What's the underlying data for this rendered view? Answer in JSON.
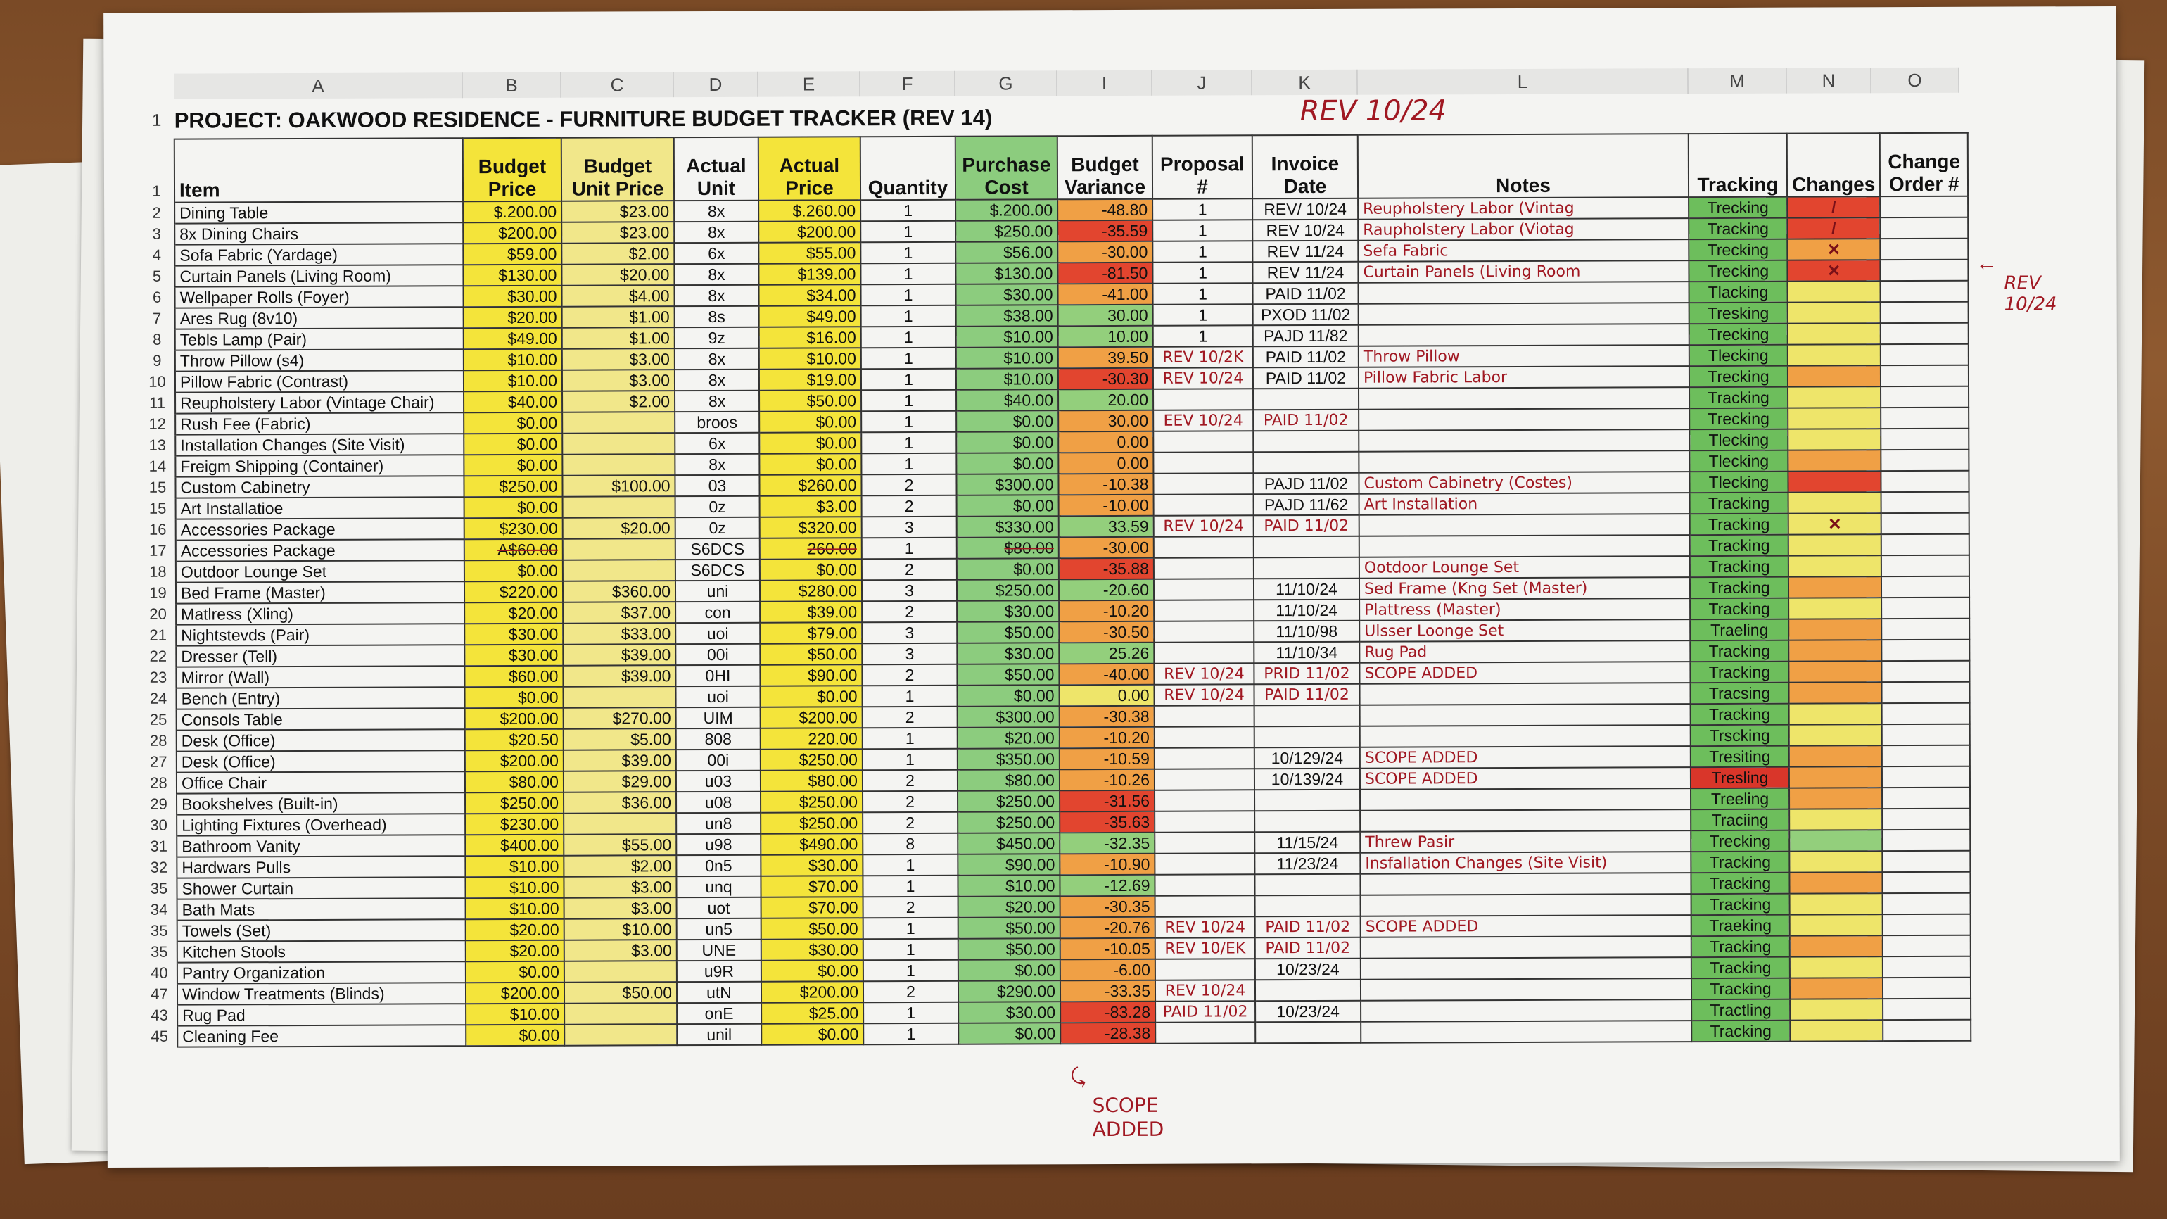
{
  "columns": [
    "A",
    "B",
    "C",
    "D",
    "E",
    "F",
    "G",
    "I",
    "J",
    "K",
    "L",
    "M",
    "N",
    "O"
  ],
  "title_row_num": "1",
  "title": "PROJECT: OAKWOOD RESIDENCE - FURNITURE BUDGET TRACKER (REV 14)",
  "annotation_top": "REV 10/24",
  "annotation_side": "REV 10/24",
  "annotation_bottom": "SCOPE ADDED",
  "header_row_num": "1",
  "headers": [
    "Item",
    "Budget Price",
    "Budget Unit Price",
    "Actual Unit",
    "Actual Price",
    "Quantity",
    "Purchase Cost",
    "Budget Variance",
    "Proposal #",
    "Invoice Date",
    "Notes",
    "Tracking",
    "Changes",
    "Change Order #"
  ],
  "colors": {
    "variance_red": "#e2452f",
    "variance_orange": "#f0a045",
    "variance_green": "#93cf7c",
    "variance_yellow": "#eee56a",
    "budget_yellow": "#f4e43a",
    "cost_green": "#8ccc7e",
    "ink_red": "#a01822"
  },
  "rows": [
    {
      "n": "2",
      "a": "Dining Table",
      "b": "$.200.00",
      "c": "$23.00",
      "d": "8x",
      "e": "$.260.00",
      "f": "1",
      "g": "$.200.00",
      "i": "-48.80",
      "v": "o",
      "j": "1",
      "k": "REV/ 10/24",
      "l": "Reupholstery Labor (Vintag",
      "m": "Trecking",
      "mc": "g",
      "nc": "r",
      "x": "/"
    },
    {
      "n": "3",
      "a": "8x Dining Chairs",
      "b": "$200.00",
      "c": "$23.00",
      "d": "8x",
      "e": "$200.00",
      "f": "1",
      "g": "$250.00",
      "i": "-35.59",
      "v": "r",
      "j": "1",
      "k": "REV 10/24",
      "l": "Raupholstery Labor (Viotag",
      "m": "Tracking",
      "mc": "g",
      "nc": "r",
      "x": "/"
    },
    {
      "n": "4",
      "a": "Sofa Fabric (Yardage)",
      "b": "$59.00",
      "c": "$2.00",
      "d": "6x",
      "e": "$55.00",
      "f": "1",
      "g": "$56.00",
      "i": "-30.00",
      "v": "o",
      "j": "1",
      "k": "REV 11/24",
      "l": "Sefa Fabric",
      "m": "Trecking",
      "mc": "g",
      "nc": "o",
      "x": "✕"
    },
    {
      "n": "5",
      "a": "Curtain Panels (Living Room)",
      "b": "$130.00",
      "c": "$20.00",
      "d": "8x",
      "e": "$139.00",
      "f": "1",
      "g": "$130.00",
      "i": "-81.50",
      "v": "r",
      "j": "1",
      "k": "REV 11/24",
      "l": "Curtain Panels (Living Room",
      "m": "Trecking",
      "mc": "g",
      "nc": "r",
      "x": "✕"
    },
    {
      "n": "6",
      "a": "Wellpaper Rolls (Foyer)",
      "b": "$30.00",
      "c": "$4.00",
      "d": "8x",
      "e": "$34.00",
      "f": "1",
      "g": "$30.00",
      "i": "-41.00",
      "v": "o",
      "j": "1",
      "k": "PAID 11/02",
      "l": "",
      "m": "Tlacking",
      "mc": "g",
      "nc": "y"
    },
    {
      "n": "7",
      "a": "Ares Rug (8v10)",
      "b": "$20.00",
      "c": "$1.00",
      "d": "8s",
      "e": "$49.00",
      "f": "1",
      "g": "$38.00",
      "i": "30.00",
      "v": "g",
      "j": "1",
      "k": "PXOD 11/02",
      "l": "",
      "m": "Tresking",
      "mc": "g",
      "nc": "y"
    },
    {
      "n": "8",
      "a": "Tebls Lamp (Pair)",
      "b": "$49.00",
      "c": "$1.00",
      "d": "9z",
      "e": "$16.00",
      "f": "1",
      "g": "$10.00",
      "i": "10.00",
      "v": "g",
      "j": "1",
      "k": "PAJD 11/82",
      "l": "",
      "m": "Trecking",
      "mc": "g",
      "nc": "y"
    },
    {
      "n": "9",
      "a": "Throw Pillow (s4)",
      "b": "$10.00",
      "c": "$3.00",
      "d": "8x",
      "e": "$10.00",
      "f": "1",
      "g": "$10.00",
      "i": "39.50",
      "v": "o",
      "j": "REV 10/2K",
      "jh": true,
      "k": "PAID 11/02",
      "l": "Throw Pillow",
      "m": "Tlecking",
      "mc": "g",
      "nc": "y"
    },
    {
      "n": "10",
      "a": "Pillow Fabric (Contrast)",
      "b": "$10.00",
      "c": "$3.00",
      "d": "8x",
      "e": "$19.00",
      "f": "1",
      "g": "$10.00",
      "i": "-30.30",
      "v": "r",
      "j": "REV 10/24",
      "jh": true,
      "k": "PAID 11/02",
      "l": "Pillow Fabric Labor",
      "m": "Trecking",
      "mc": "g",
      "nc": "o"
    },
    {
      "n": "11",
      "a": "Reupholstery Labor (Vintage Chair)",
      "b": "$40.00",
      "c": "$2.00",
      "d": "8x",
      "e": "$50.00",
      "f": "1",
      "g": "$40.00",
      "i": "20.00",
      "v": "g",
      "j": "",
      "k": "",
      "l": "",
      "m": "Tracking",
      "mc": "g",
      "nc": "y"
    },
    {
      "n": "12",
      "a": "Rush Fee (Fabric)",
      "b": "$0.00",
      "c": "",
      "d": "broos",
      "e": "$0.00",
      "f": "1",
      "g": "$0.00",
      "i": "30.00",
      "v": "o",
      "j": "EEV 10/24",
      "jh": true,
      "k": "PAID 11/02",
      "kh": true,
      "l": "",
      "m": "Trecking",
      "mc": "g",
      "nc": "y"
    },
    {
      "n": "13",
      "a": "Installation Changes (Site Visit)",
      "b": "$0.00",
      "c": "",
      "d": "6x",
      "e": "$0.00",
      "f": "1",
      "g": "$0.00",
      "i": "0.00",
      "v": "o",
      "j": "",
      "k": "",
      "l": "",
      "m": "Tlecking",
      "mc": "g",
      "nc": "y"
    },
    {
      "n": "14",
      "a": "Freigm Shipping (Container)",
      "b": "$0.00",
      "c": "",
      "d": "8x",
      "e": "$0.00",
      "f": "1",
      "g": "$0.00",
      "i": "0.00",
      "v": "o",
      "j": "",
      "k": "",
      "l": "",
      "m": "Tlecking",
      "mc": "g",
      "nc": "o"
    },
    {
      "n": "15",
      "a": "Custom Cabinetry",
      "b": "$250.00",
      "c": "$100.00",
      "d": "03",
      "e": "$260.00",
      "f": "2",
      "g": "$300.00",
      "i": "-10.38",
      "v": "o",
      "j": "",
      "k": "PAJD 11/02",
      "l": "Custom Cabinetry (Costes)",
      "m": "Tlecking",
      "mc": "g",
      "nc": "r"
    },
    {
      "n": "15",
      "a": "Art Installatioe",
      "b": "$0.00",
      "c": "",
      "d": "0z",
      "e": "$3.00",
      "f": "2",
      "g": "$0.00",
      "i": "-10.00",
      "v": "o",
      "j": "",
      "k": "PAJD 11/62",
      "l": "Art Installation",
      "m": "Tracking",
      "mc": "g",
      "nc": "y"
    },
    {
      "n": "16",
      "a": "Accessories Package",
      "b": "$230.00",
      "c": "$20.00",
      "d": "0z",
      "e": "$320.00",
      "f": "3",
      "g": "$330.00",
      "i": "33.59",
      "v": "g",
      "j": "REV 10/24",
      "jh": true,
      "k": "PAID 11/02",
      "kh": true,
      "l": "",
      "m": "Tracking",
      "mc": "g",
      "nc": "y",
      "x": "✕"
    },
    {
      "n": "17",
      "a": "Accessories Package",
      "b": "A$60.00",
      "c": "",
      "d": "S6DCS",
      "e": "260.00",
      "f": "1",
      "g": "$80.00",
      "i": "-30.00",
      "v": "o",
      "j": "",
      "k": "",
      "l": "",
      "m": "Tracking",
      "mc": "g",
      "nc": "y",
      "s": true
    },
    {
      "n": "18",
      "a": "Outdoor Lounge Set",
      "b": "$0.00",
      "c": "",
      "d": "S6DCS",
      "e": "$0.00",
      "f": "2",
      "g": "$0.00",
      "i": "-35.88",
      "v": "r",
      "j": "",
      "k": "",
      "l": "Ootdoor Lounge Set",
      "m": "Tracking",
      "mc": "g",
      "nc": "y"
    },
    {
      "n": "19",
      "a": "Bed Frame (Master)",
      "b": "$220.00",
      "c": "$360.00",
      "d": "uni",
      "e": "$280.00",
      "f": "3",
      "g": "$250.00",
      "i": "-20.60",
      "v": "g",
      "j": "",
      "k": "11/10/24",
      "l": "Sed Frame (Kng Set (Master)",
      "m": "Tracking",
      "mc": "g",
      "nc": "o"
    },
    {
      "n": "20",
      "a": "Matlress (Xling)",
      "b": "$20.00",
      "c": "$37.00",
      "d": "con",
      "e": "$39.00",
      "f": "2",
      "g": "$30.00",
      "i": "-10.20",
      "v": "o",
      "j": "",
      "k": "11/10/24",
      "l": "Plattress (Master)",
      "m": "Tracking",
      "mc": "g",
      "nc": "y"
    },
    {
      "n": "21",
      "a": "Nightstevds (Pair)",
      "b": "$30.00",
      "c": "$33.00",
      "d": "uoi",
      "e": "$79.00",
      "f": "3",
      "g": "$50.00",
      "i": "-30.50",
      "v": "o",
      "j": "",
      "k": "11/10/98",
      "l": "Ulsser Loonge Set",
      "m": "Traeling",
      "mc": "g",
      "nc": "o"
    },
    {
      "n": "22",
      "a": "Dresser (Tell)",
      "b": "$30.00",
      "c": "$39.00",
      "d": "00i",
      "e": "$50.00",
      "f": "3",
      "g": "$30.00",
      "i": "25.26",
      "v": "g",
      "j": "",
      "k": "11/10/34",
      "l": "Rug Pad",
      "m": "Tracking",
      "mc": "g",
      "nc": "o"
    },
    {
      "n": "23",
      "a": "Mirror (Wall)",
      "b": "$60.00",
      "c": "$39.00",
      "d": "0HI",
      "e": "$90.00",
      "f": "2",
      "g": "$50.00",
      "i": "-40.00",
      "v": "o",
      "j": "REV 10/24",
      "jh": true,
      "k": "PRID 11/02",
      "kh": true,
      "l": "SCOPE ADDED",
      "m": "Tracking",
      "mc": "g",
      "nc": "o"
    },
    {
      "n": "24",
      "a": "Bench (Entry)",
      "b": "$0.00",
      "c": "",
      "d": "uoi",
      "e": "$0.00",
      "f": "1",
      "g": "$0.00",
      "i": "0.00",
      "v": "y",
      "j": "REV 10/24",
      "jh": true,
      "k": "PAID 11/02",
      "kh": true,
      "l": "",
      "m": "Tracsing",
      "mc": "g",
      "nc": "o"
    },
    {
      "n": "25",
      "a": "Consols Table",
      "b": "$200.00",
      "c": "$270.00",
      "d": "UIM",
      "e": "$200.00",
      "f": "2",
      "g": "$300.00",
      "i": "-30.38",
      "v": "o",
      "j": "",
      "k": "",
      "l": "",
      "m": "Tracking",
      "mc": "g",
      "nc": "y"
    },
    {
      "n": "28",
      "a": "Desk (Office)",
      "b": "$20.50",
      "c": "$5.00",
      "d": "808",
      "e": "220.00",
      "f": "1",
      "g": "$20.00",
      "i": "-10.20",
      "v": "o",
      "j": "",
      "k": "",
      "l": "",
      "m": "Trscking",
      "mc": "g",
      "nc": "y"
    },
    {
      "n": "27",
      "a": "Desk (Office)",
      "b": "$200.00",
      "c": "$39.00",
      "d": "00i",
      "e": "$250.00",
      "f": "1",
      "g": "$350.00",
      "i": "-10.59",
      "v": "o",
      "j": "",
      "k": "10/129/24",
      "l": "SCOPE ADDED",
      "m": "Tresiting",
      "mc": "g",
      "nc": "o"
    },
    {
      "n": "28",
      "a": "Office Chair",
      "b": "$80.00",
      "c": "$29.00",
      "d": "u03",
      "e": "$80.00",
      "f": "2",
      "g": "$80.00",
      "i": "-10.26",
      "v": "o",
      "j": "",
      "k": "10/139/24",
      "l": "SCOPE ADDED",
      "m": "Tresling",
      "mc": "r",
      "nc": "o"
    },
    {
      "n": "29",
      "a": "Bookshelves (Built-in)",
      "b": "$250.00",
      "c": "$36.00",
      "d": "u08",
      "e": "$250.00",
      "f": "2",
      "g": "$250.00",
      "i": "-31.56",
      "v": "r",
      "j": "",
      "k": "",
      "l": "",
      "m": "Treeling",
      "mc": "g",
      "nc": "o"
    },
    {
      "n": "30",
      "a": "Lighting Fixtures (Overhead)",
      "b": "$230.00",
      "c": "",
      "d": "un8",
      "e": "$250.00",
      "f": "2",
      "g": "$250.00",
      "i": "-35.63",
      "v": "r",
      "j": "",
      "k": "",
      "l": "",
      "m": "Traciing",
      "mc": "g",
      "nc": "y"
    },
    {
      "n": "31",
      "a": "Bathroom Vanity",
      "b": "$400.00",
      "c": "$55.00",
      "d": "u98",
      "e": "$490.00",
      "f": "8",
      "g": "$450.00",
      "i": "-32.35",
      "v": "g",
      "j": "",
      "k": "11/15/24",
      "l": "Threw Pasir",
      "m": "Trecking",
      "mc": "g",
      "nc": "g"
    },
    {
      "n": "32",
      "a": "Hardwars Pulls",
      "b": "$10.00",
      "c": "$2.00",
      "d": "0n5",
      "e": "$30.00",
      "f": "1",
      "g": "$90.00",
      "i": "-10.90",
      "v": "o",
      "j": "",
      "k": "11/23/24",
      "l": "Insfallation Changes (Site Visit)",
      "m": "Tracking",
      "mc": "g",
      "nc": "y"
    },
    {
      "n": "35",
      "a": "Shower Curtain",
      "b": "$10.00",
      "c": "$3.00",
      "d": "unq",
      "e": "$70.00",
      "f": "1",
      "g": "$10.00",
      "i": "-12.69",
      "v": "g",
      "j": "",
      "k": "",
      "l": "",
      "m": "Tracking",
      "mc": "g",
      "nc": "o"
    },
    {
      "n": "34",
      "a": "Bath Mats",
      "b": "$10.00",
      "c": "$3.00",
      "d": "uot",
      "e": "$70.00",
      "f": "2",
      "g": "$20.00",
      "i": "-30.35",
      "v": "o",
      "j": "",
      "k": "",
      "l": "",
      "m": "Tracking",
      "mc": "g",
      "nc": "y"
    },
    {
      "n": "35",
      "a": "Towels (Set)",
      "b": "$20.00",
      "c": "$10.00",
      "d": "un5",
      "e": "$50.00",
      "f": "1",
      "g": "$50.00",
      "i": "-20.76",
      "v": "o",
      "j": "REV 10/24",
      "jh": true,
      "k": "PAID 11/02",
      "kh": true,
      "l": "SCOPE ADDED",
      "m": "Traeking",
      "mc": "g",
      "nc": "y"
    },
    {
      "n": "35",
      "a": "Kitchen Stools",
      "b": "$20.00",
      "c": "$3.00",
      "d": "UNE",
      "e": "$30.00",
      "f": "1",
      "g": "$50.00",
      "i": "-10.05",
      "v": "o",
      "j": "REV 10/EK",
      "jh": true,
      "k": "PAID 11/02",
      "kh": true,
      "l": "",
      "m": "Tracking",
      "mc": "g",
      "nc": "o"
    },
    {
      "n": "40",
      "a": "Pantry Organization",
      "b": "$0.00",
      "c": "",
      "d": "u9R",
      "e": "$0.00",
      "f": "1",
      "g": "$0.00",
      "i": "-6.00",
      "v": "o",
      "j": "",
      "k": "10/23/24",
      "l": "",
      "m": "Tracking",
      "mc": "g",
      "nc": "y"
    },
    {
      "n": "47",
      "a": "Window Treatments (Blinds)",
      "b": "$200.00",
      "c": "$50.00",
      "d": "utN",
      "e": "$200.00",
      "f": "2",
      "g": "$290.00",
      "i": "-33.35",
      "v": "o",
      "j": "REV 10/24",
      "jh": true,
      "k": "",
      "l": "",
      "m": "Tracking",
      "mc": "g",
      "nc": "o"
    },
    {
      "n": "43",
      "a": "Rug Pad",
      "b": "$10.00",
      "c": "",
      "d": "onE",
      "e": "$25.00",
      "f": "1",
      "g": "$30.00",
      "i": "-83.28",
      "v": "r",
      "j": "PAID 11/02",
      "jh": true,
      "k": "10/23/24",
      "l": "",
      "m": "Tractling",
      "mc": "g",
      "nc": "y"
    },
    {
      "n": "45",
      "a": "Cleaning Fee",
      "b": "$0.00",
      "c": "",
      "d": "unil",
      "e": "$0.00",
      "f": "1",
      "g": "$0.00",
      "i": "-28.38",
      "v": "r",
      "j": "",
      "k": "",
      "l": "",
      "m": "Tracking",
      "mc": "g",
      "nc": "y"
    }
  ]
}
